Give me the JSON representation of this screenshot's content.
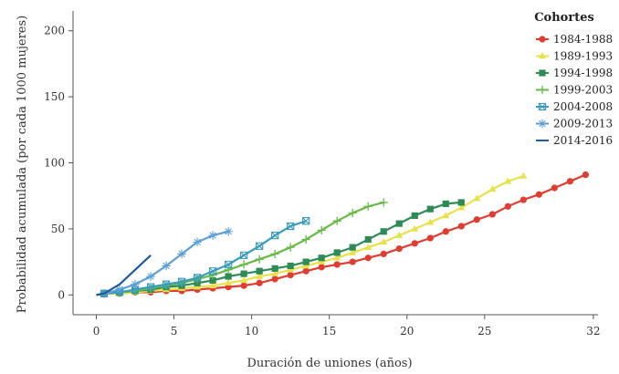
{
  "chart_data": {
    "type": "line",
    "title": "",
    "xlabel": "Duración de uniones (años)",
    "ylabel": "Probabilidad acumulada (por cada 1000 mujeres)",
    "xlim": [
      -1.5,
      32.3
    ],
    "ylim": [
      -15,
      215
    ],
    "x_ticks": [
      0,
      5,
      10,
      15,
      20,
      25,
      32
    ],
    "y_ticks": [
      0,
      50,
      100,
      150,
      200
    ],
    "grid": false,
    "legend": {
      "title": "Cohortes",
      "position": "top-right"
    },
    "series": [
      {
        "name": "1984-1988",
        "color": "#e03c31",
        "marker": "circle",
        "x": [
          0.5,
          1.5,
          2.5,
          3.5,
          4.5,
          5.5,
          6.5,
          7.5,
          8.5,
          9.5,
          10.5,
          11.5,
          12.5,
          13.5,
          14.5,
          15.5,
          16.5,
          17.5,
          18.5,
          19.5,
          20.5,
          21.5,
          22.5,
          23.5,
          24.5,
          25.5,
          26.5,
          27.5,
          28.5,
          29.5,
          30.5,
          31.5
        ],
        "values": [
          1,
          1,
          2,
          2,
          3,
          3,
          4,
          5,
          6,
          7,
          9,
          12,
          15,
          18,
          21,
          23,
          25,
          28,
          31,
          35,
          39,
          43,
          48,
          52,
          57,
          61,
          67,
          72,
          76,
          81,
          86,
          91
        ]
      },
      {
        "name": "1989-1993",
        "color": "#e8e24a",
        "marker": "triangle",
        "x": [
          0.5,
          1.5,
          2.5,
          3.5,
          4.5,
          5.5,
          6.5,
          7.5,
          8.5,
          9.5,
          10.5,
          11.5,
          12.5,
          13.5,
          14.5,
          15.5,
          16.5,
          17.5,
          18.5,
          19.5,
          20.5,
          21.5,
          22.5,
          23.5,
          24.5,
          25.5,
          26.5,
          27.5
        ],
        "values": [
          1,
          1,
          2,
          3,
          4,
          5,
          6,
          7,
          9,
          11,
          14,
          16,
          19,
          22,
          25,
          28,
          32,
          36,
          40,
          45,
          50,
          55,
          60,
          66,
          73,
          80,
          86,
          90
        ]
      },
      {
        "name": "1994-1998",
        "color": "#2e8b57",
        "marker": "square",
        "x": [
          0.5,
          1.5,
          2.5,
          3.5,
          4.5,
          5.5,
          6.5,
          7.5,
          8.5,
          9.5,
          10.5,
          11.5,
          12.5,
          13.5,
          14.5,
          15.5,
          16.5,
          17.5,
          18.5,
          19.5,
          20.5,
          21.5,
          22.5,
          23.5
        ],
        "values": [
          1,
          2,
          3,
          4,
          6,
          7,
          9,
          11,
          14,
          16,
          18,
          20,
          22,
          25,
          28,
          32,
          36,
          42,
          48,
          54,
          60,
          65,
          69,
          70
        ]
      },
      {
        "name": "1999-2003",
        "color": "#66bb44",
        "marker": "plus",
        "x": [
          0.5,
          1.5,
          2.5,
          3.5,
          4.5,
          5.5,
          6.5,
          7.5,
          8.5,
          9.5,
          10.5,
          11.5,
          12.5,
          13.5,
          14.5,
          15.5,
          16.5,
          17.5,
          18.5
        ],
        "values": [
          1,
          2,
          3,
          5,
          7,
          9,
          12,
          15,
          19,
          23,
          27,
          31,
          36,
          42,
          49,
          56,
          62,
          67,
          70
        ]
      },
      {
        "name": "2004-2008",
        "color": "#3a9cbc",
        "marker": "xbox",
        "x": [
          0.5,
          1.5,
          2.5,
          3.5,
          4.5,
          5.5,
          6.5,
          7.5,
          8.5,
          9.5,
          10.5,
          11.5,
          12.5,
          13.5
        ],
        "values": [
          1,
          2,
          4,
          6,
          8,
          10,
          13,
          18,
          23,
          30,
          37,
          45,
          52,
          56
        ]
      },
      {
        "name": "2009-2013",
        "color": "#5b9fd6",
        "marker": "star",
        "x": [
          0.5,
          1.5,
          2.5,
          3.5,
          4.5,
          5.5,
          6.5,
          7.5,
          8.5
        ],
        "values": [
          1,
          4,
          8,
          14,
          22,
          31,
          40,
          45,
          48
        ]
      },
      {
        "name": "2014-2016",
        "color": "#1f5aa0",
        "marker": "none",
        "x": [
          0.5,
          1.5,
          2.5,
          3.5
        ],
        "values": [
          1,
          8,
          19,
          30
        ]
      }
    ]
  }
}
